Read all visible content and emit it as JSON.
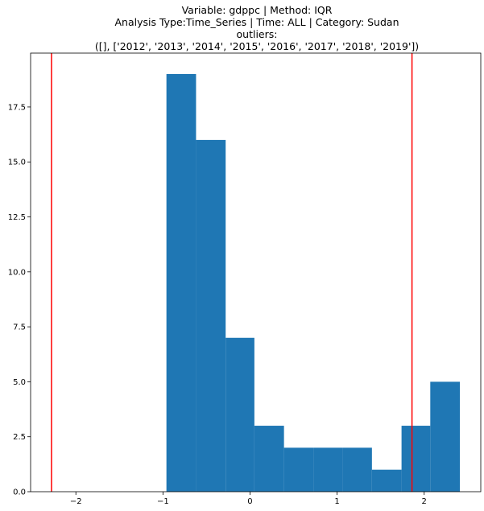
{
  "title": {
    "lines": [
      "Variable: gdppc | Method: IQR",
      "Analysis Type:Time_Series | Time: ALL | Category: Sudan",
      "outliers:",
      "([], ['2012', '2013', '2014', '2015', '2016', '2017', '2018', '2019'])"
    ]
  },
  "chart_data": {
    "type": "bar",
    "subtype": "histogram",
    "bin_edges": [
      -0.96,
      -0.62,
      -0.28,
      0.05,
      0.39,
      0.73,
      1.06,
      1.4,
      1.74,
      2.07,
      2.41
    ],
    "counts": [
      19,
      16,
      7,
      3,
      2,
      2,
      2,
      1,
      3,
      5
    ],
    "bar_color": "#1f77b4",
    "reference_lines": [
      {
        "x": -2.28,
        "color": "#ff0000"
      },
      {
        "x": 1.86,
        "color": "#ff0000"
      }
    ],
    "xlim": [
      -2.52,
      2.65
    ],
    "ylim": [
      0,
      19.95
    ],
    "x_ticks": [
      -2,
      -1,
      0,
      1,
      2
    ],
    "x_tick_labels": [
      "−2",
      "−1",
      "0",
      "1",
      "2"
    ],
    "y_ticks": [
      0,
      2.5,
      5,
      7.5,
      10,
      12.5,
      15,
      17.5
    ],
    "y_tick_labels": [
      "0.0",
      "2.5",
      "5.0",
      "7.5",
      "10.0",
      "12.5",
      "15.0",
      "17.5"
    ],
    "xlabel": "",
    "ylabel": "",
    "grid": false,
    "legend": "none"
  }
}
